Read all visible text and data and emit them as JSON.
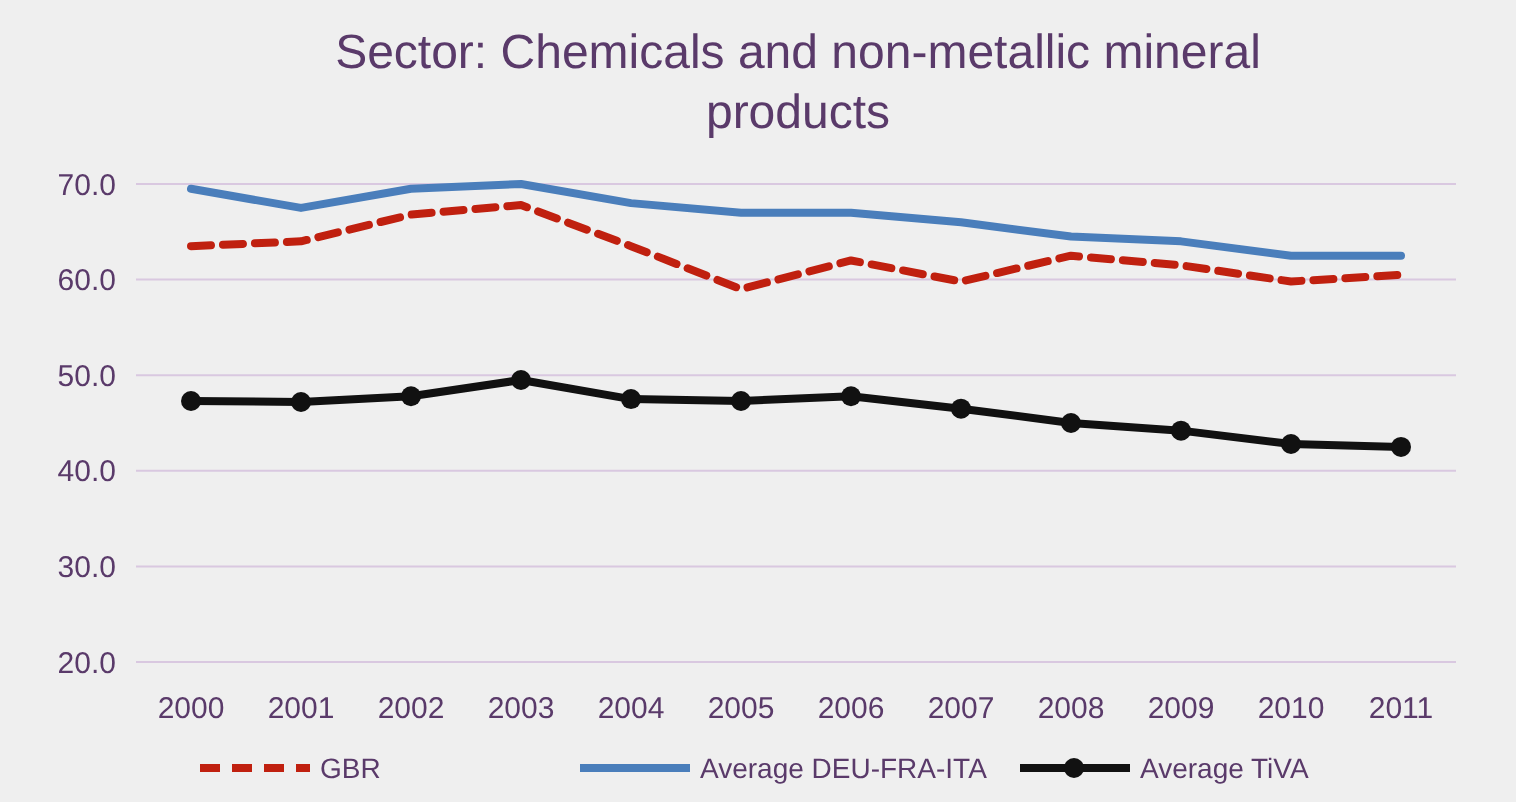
{
  "chart_data": {
    "type": "line",
    "title": "Sector: Chemicals and non-metallic mineral products",
    "categories": [
      "2000",
      "2001",
      "2002",
      "2003",
      "2004",
      "2005",
      "2006",
      "2007",
      "2008",
      "2009",
      "2010",
      "2011"
    ],
    "series": [
      {
        "name": "GBR",
        "color": "#c0200f",
        "line_style": "dashed",
        "marker": "none",
        "values": [
          63.5,
          64,
          66.8,
          67.8,
          63.5,
          59,
          62,
          59.8,
          62.5,
          61.5,
          59.8,
          60.5
        ]
      },
      {
        "name": "Average DEU-FRA-ITA",
        "color": "#4a7ebb",
        "line_style": "solid",
        "marker": "none",
        "values": [
          69.5,
          67.5,
          69.5,
          70,
          68,
          67,
          67,
          66,
          64.5,
          64,
          62.5,
          62.5
        ]
      },
      {
        "name": "Average TiVA",
        "color": "#111111",
        "line_style": "solid",
        "marker": "circle",
        "values": [
          47.3,
          47.2,
          47.8,
          49.5,
          47.5,
          47.3,
          47.8,
          46.5,
          45,
          44.2,
          42.8,
          42.5
        ]
      }
    ],
    "ylim": [
      20,
      70
    ],
    "yticks": [
      {
        "value": 20,
        "label": "20.0"
      },
      {
        "value": 30,
        "label": "30.0"
      },
      {
        "value": 40,
        "label": "40.0"
      },
      {
        "value": 50,
        "label": "50.0"
      },
      {
        "value": 60,
        "label": "60.0"
      },
      {
        "value": 70,
        "label": "70.0"
      }
    ],
    "grid": "y",
    "legend": "bottom"
  }
}
